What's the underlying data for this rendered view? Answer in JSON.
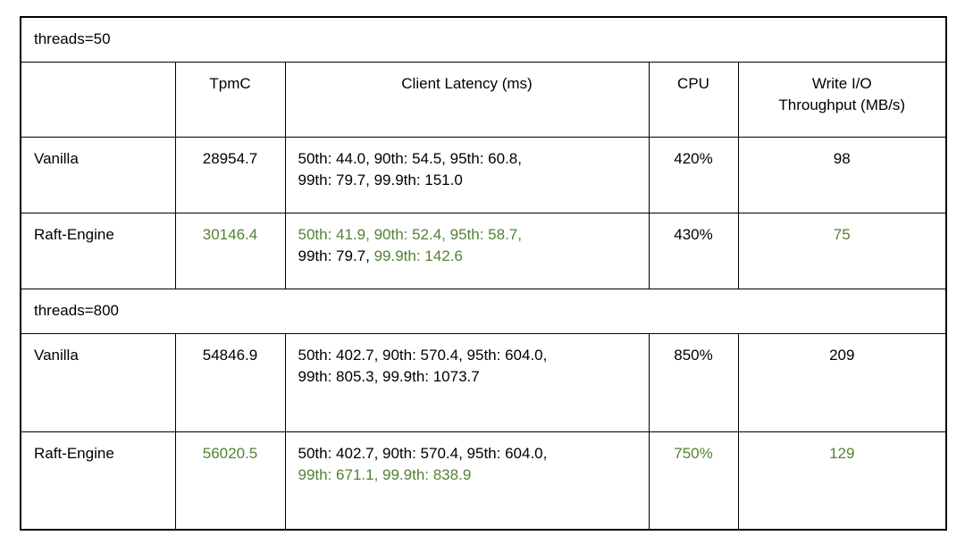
{
  "colors": {
    "highlight_green": "#538135",
    "text": "#000000",
    "border": "#000000",
    "background": "#ffffff"
  },
  "table": {
    "sections": {
      "s1_title": "threads=50",
      "s2_title": "threads=800"
    },
    "header": {
      "name": "",
      "tpmc": "TpmC",
      "latency": "Client Latency (ms)",
      "cpu": "CPU",
      "io_line1": "Write I/O",
      "io_line2": "Throughput (MB/s)"
    },
    "rows": {
      "t50_vanilla": {
        "name": "Vanilla",
        "tpmc": "28954.7",
        "lat_line1": "50th: 44.0, 90th: 54.5, 95th: 60.8,",
        "lat_line2": "99th: 79.7, 99.9th: 151.0",
        "cpu": "420%",
        "io": "98"
      },
      "t50_raft": {
        "name": "Raft-Engine",
        "tpmc": "30146.4",
        "lat_line1": "50th: 41.9, 90th: 52.4, 95th: 58.7,",
        "lat_line2_black": "99th: 79.7, ",
        "lat_line2_green": "99.9th: 142.6",
        "cpu": "430%",
        "io": "75"
      },
      "t800_vanilla": {
        "name": "Vanilla",
        "tpmc": "54846.9",
        "lat_line1": "50th: 402.7, 90th: 570.4, 95th: 604.0,",
        "lat_line2": "99th: 805.3, 99.9th: 1073.7",
        "cpu": "850%",
        "io": "209"
      },
      "t800_raft": {
        "name": "Raft-Engine",
        "tpmc": "56020.5",
        "lat_line1": "50th: 402.7, 90th: 570.4, 95th: 604.0,",
        "lat_line2": "99th: 671.1, 99.9th: 838.9",
        "cpu": "750%",
        "io": "129"
      }
    }
  }
}
